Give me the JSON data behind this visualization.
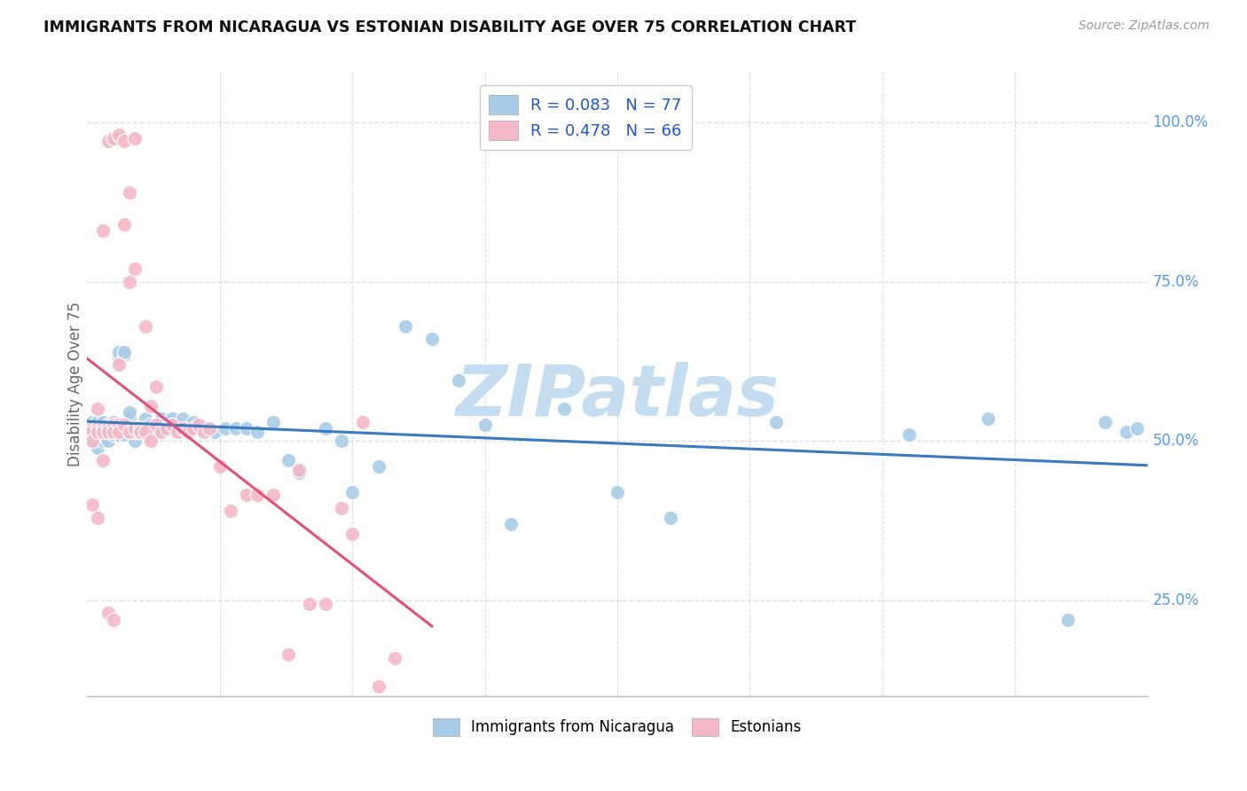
{
  "title": "IMMIGRANTS FROM NICARAGUA VS ESTONIAN DISABILITY AGE OVER 75 CORRELATION CHART",
  "source": "Source: ZipAtlas.com",
  "ylabel": "Disability Age Over 75",
  "legend_blue_label": "R = 0.083   N = 77",
  "legend_pink_label": "R = 0.478   N = 66",
  "legend_bottom_blue": "Immigrants from Nicaragua",
  "legend_bottom_pink": "Estonians",
  "blue_color": "#a8cce8",
  "pink_color": "#f4b8c8",
  "blue_line_color": "#3a7abf",
  "pink_line_color": "#e0507a",
  "axis_label_color": "#5599ee",
  "watermark_color": "#c8dff5",
  "xlim": [
    0.0,
    0.2
  ],
  "ylim": [
    0.1,
    1.08
  ],
  "blue_R": 0.083,
  "blue_N": 77,
  "pink_R": 0.478,
  "pink_N": 66,
  "blue_x": [
    0.001,
    0.001,
    0.001,
    0.002,
    0.002,
    0.002,
    0.002,
    0.003,
    0.003,
    0.003,
    0.003,
    0.003,
    0.004,
    0.004,
    0.004,
    0.004,
    0.005,
    0.005,
    0.005,
    0.005,
    0.006,
    0.006,
    0.006,
    0.006,
    0.007,
    0.007,
    0.007,
    0.007,
    0.008,
    0.008,
    0.008,
    0.009,
    0.009,
    0.009,
    0.01,
    0.01,
    0.011,
    0.011,
    0.012,
    0.012,
    0.013,
    0.013,
    0.014,
    0.015,
    0.016,
    0.017,
    0.018,
    0.019,
    0.02,
    0.022,
    0.024,
    0.026,
    0.028,
    0.03,
    0.032,
    0.035,
    0.038,
    0.04,
    0.045,
    0.048,
    0.05,
    0.055,
    0.06,
    0.065,
    0.07,
    0.075,
    0.08,
    0.09,
    0.1,
    0.11,
    0.13,
    0.155,
    0.17,
    0.185,
    0.192,
    0.196,
    0.198
  ],
  "blue_y": [
    0.52,
    0.5,
    0.53,
    0.51,
    0.53,
    0.52,
    0.49,
    0.52,
    0.51,
    0.53,
    0.52,
    0.5,
    0.525,
    0.515,
    0.52,
    0.5,
    0.53,
    0.52,
    0.51,
    0.525,
    0.63,
    0.64,
    0.52,
    0.51,
    0.635,
    0.64,
    0.52,
    0.51,
    0.535,
    0.52,
    0.545,
    0.52,
    0.5,
    0.515,
    0.52,
    0.515,
    0.535,
    0.52,
    0.525,
    0.515,
    0.52,
    0.515,
    0.535,
    0.52,
    0.535,
    0.525,
    0.535,
    0.515,
    0.53,
    0.52,
    0.515,
    0.52,
    0.52,
    0.52,
    0.515,
    0.53,
    0.47,
    0.45,
    0.52,
    0.5,
    0.42,
    0.46,
    0.68,
    0.66,
    0.595,
    0.525,
    0.37,
    0.55,
    0.42,
    0.38,
    0.53,
    0.51,
    0.535,
    0.22,
    0.53,
    0.515,
    0.52
  ],
  "pink_x": [
    0.001,
    0.001,
    0.001,
    0.001,
    0.002,
    0.002,
    0.002,
    0.002,
    0.003,
    0.003,
    0.003,
    0.003,
    0.004,
    0.004,
    0.004,
    0.005,
    0.005,
    0.005,
    0.005,
    0.006,
    0.006,
    0.006,
    0.007,
    0.007,
    0.008,
    0.008,
    0.009,
    0.009,
    0.01,
    0.01,
    0.011,
    0.011,
    0.012,
    0.012,
    0.013,
    0.013,
    0.014,
    0.015,
    0.016,
    0.017,
    0.018,
    0.019,
    0.02,
    0.021,
    0.022,
    0.023,
    0.025,
    0.027,
    0.03,
    0.032,
    0.035,
    0.038,
    0.04,
    0.042,
    0.045,
    0.048,
    0.05,
    0.052,
    0.055,
    0.058,
    0.004,
    0.005,
    0.006,
    0.007,
    0.008,
    0.009
  ],
  "pink_y": [
    0.52,
    0.515,
    0.5,
    0.4,
    0.55,
    0.52,
    0.515,
    0.38,
    0.52,
    0.515,
    0.83,
    0.47,
    0.52,
    0.515,
    0.23,
    0.53,
    0.525,
    0.515,
    0.22,
    0.62,
    0.525,
    0.515,
    0.525,
    0.84,
    0.75,
    0.515,
    0.77,
    0.52,
    0.52,
    0.515,
    0.515,
    0.68,
    0.5,
    0.555,
    0.525,
    0.585,
    0.515,
    0.52,
    0.525,
    0.515,
    0.52,
    0.515,
    0.52,
    0.525,
    0.515,
    0.52,
    0.46,
    0.39,
    0.415,
    0.415,
    0.415,
    0.165,
    0.455,
    0.245,
    0.245,
    0.395,
    0.355,
    0.53,
    0.115,
    0.16,
    0.97,
    0.975,
    0.98,
    0.97,
    0.89,
    0.975
  ]
}
